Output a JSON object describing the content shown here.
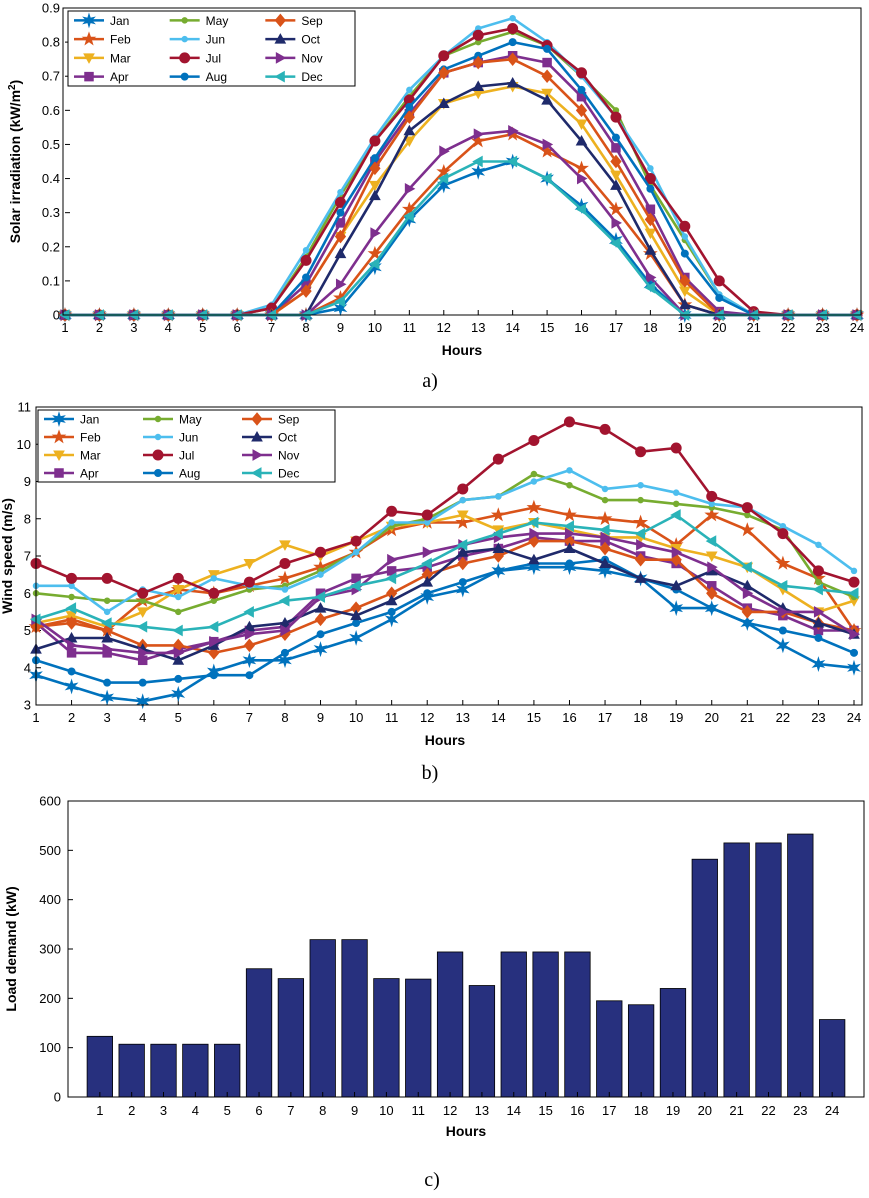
{
  "chart_data": [
    {
      "type": "line",
      "panel_label": "a)",
      "xlabel": "Hours",
      "ylabel": "Solar irradiation (kW/m",
      "ylabel_sup": "2",
      "ylabel_close": ")",
      "x": [
        1,
        2,
        3,
        4,
        5,
        6,
        7,
        8,
        9,
        10,
        11,
        12,
        13,
        14,
        15,
        16,
        17,
        18,
        19,
        20,
        21,
        22,
        23,
        24
      ],
      "xlim": [
        1,
        24
      ],
      "ylim": [
        0,
        0.9
      ],
      "yticks": [
        0,
        0.1,
        0.2,
        0.3,
        0.4,
        0.5,
        0.6,
        0.7,
        0.8,
        0.9
      ],
      "ytick_labels": [
        "0",
        "0.1",
        "0.2",
        "0.3",
        "0.4",
        "0.5",
        "0.6",
        "0.7",
        "0.8",
        "0.9"
      ],
      "legend": "top-left",
      "series": [
        {
          "name": "Jan",
          "color": "#0072BD",
          "marker": "hexagram",
          "values": [
            0,
            0,
            0,
            0,
            0,
            0,
            0,
            0,
            0.02,
            0.14,
            0.28,
            0.38,
            0.42,
            0.45,
            0.4,
            0.32,
            0.22,
            0.09,
            0,
            0,
            0,
            0,
            0,
            0
          ]
        },
        {
          "name": "Feb",
          "color": "#D95319",
          "marker": "pentagram",
          "values": [
            0,
            0,
            0,
            0,
            0,
            0,
            0,
            0,
            0.05,
            0.18,
            0.31,
            0.42,
            0.51,
            0.53,
            0.48,
            0.43,
            0.31,
            0.18,
            0.03,
            0,
            0,
            0,
            0,
            0
          ]
        },
        {
          "name": "Mar",
          "color": "#EDB120",
          "marker": "triangle-down",
          "values": [
            0,
            0,
            0,
            0,
            0,
            0,
            0,
            0.07,
            0.23,
            0.38,
            0.51,
            0.62,
            0.65,
            0.67,
            0.65,
            0.56,
            0.41,
            0.24,
            0.07,
            0,
            0,
            0,
            0,
            0
          ]
        },
        {
          "name": "Apr",
          "color": "#7E2F8E",
          "marker": "square",
          "values": [
            0,
            0,
            0,
            0,
            0,
            0,
            0,
            0.09,
            0.27,
            0.45,
            0.59,
            0.71,
            0.74,
            0.76,
            0.74,
            0.64,
            0.49,
            0.31,
            0.11,
            0.01,
            0,
            0,
            0,
            0
          ]
        },
        {
          "name": "May",
          "color": "#77AC30",
          "marker": "point",
          "values": [
            0,
            0,
            0,
            0,
            0,
            0,
            0.02,
            0.17,
            0.35,
            0.51,
            0.64,
            0.76,
            0.8,
            0.83,
            0.79,
            0.7,
            0.6,
            0.38,
            0.22,
            0.06,
            0,
            0,
            0,
            0
          ]
        },
        {
          "name": "Jun",
          "color": "#4DBEEE",
          "marker": "point",
          "values": [
            0,
            0,
            0,
            0,
            0,
            0,
            0.03,
            0.19,
            0.36,
            0.52,
            0.66,
            0.76,
            0.84,
            0.87,
            0.8,
            0.7,
            0.58,
            0.43,
            0.23,
            0.06,
            0,
            0,
            0,
            0
          ]
        },
        {
          "name": "Jul",
          "color": "#A2142F",
          "marker": "circle",
          "values": [
            0,
            0,
            0,
            0,
            0,
            0,
            0.02,
            0.16,
            0.33,
            0.51,
            0.63,
            0.76,
            0.82,
            0.84,
            0.79,
            0.71,
            0.58,
            0.4,
            0.26,
            0.1,
            0.01,
            0,
            0,
            0
          ]
        },
        {
          "name": "Aug",
          "color": "#0072BD",
          "marker": "circle-small",
          "values": [
            0,
            0,
            0,
            0,
            0,
            0,
            0,
            0.11,
            0.3,
            0.46,
            0.61,
            0.72,
            0.76,
            0.8,
            0.78,
            0.66,
            0.52,
            0.37,
            0.18,
            0.05,
            0,
            0,
            0,
            0
          ]
        },
        {
          "name": "Sep",
          "color": "#D95319",
          "marker": "diamond",
          "values": [
            0,
            0,
            0,
            0,
            0,
            0,
            0,
            0.07,
            0.23,
            0.43,
            0.58,
            0.71,
            0.74,
            0.75,
            0.7,
            0.6,
            0.45,
            0.28,
            0.1,
            0,
            0,
            0,
            0,
            0
          ]
        },
        {
          "name": "Oct",
          "color": "#1F2A6B",
          "marker": "triangle-up",
          "values": [
            0,
            0,
            0,
            0,
            0,
            0,
            0,
            0,
            0.18,
            0.35,
            0.54,
            0.62,
            0.67,
            0.68,
            0.63,
            0.51,
            0.38,
            0.19,
            0.03,
            0,
            0,
            0,
            0,
            0
          ]
        },
        {
          "name": "Nov",
          "color": "#7E2F8E",
          "marker": "triangle-right",
          "values": [
            0,
            0,
            0,
            0,
            0,
            0,
            0,
            0,
            0.09,
            0.24,
            0.37,
            0.48,
            0.53,
            0.54,
            0.5,
            0.4,
            0.27,
            0.11,
            0,
            0,
            0,
            0,
            0,
            0
          ]
        },
        {
          "name": "Dec",
          "color": "#2AB3B8",
          "marker": "triangle-left",
          "values": [
            0,
            0,
            0,
            0,
            0,
            0,
            0,
            0,
            0.04,
            0.15,
            0.29,
            0.4,
            0.45,
            0.45,
            0.4,
            0.31,
            0.21,
            0.08,
            0,
            0,
            0,
            0,
            0,
            0
          ]
        }
      ]
    },
    {
      "type": "line",
      "panel_label": "b)",
      "xlabel": "Hours",
      "ylabel": "Wind speed (m/s)",
      "x": [
        1,
        2,
        3,
        4,
        5,
        6,
        7,
        8,
        9,
        10,
        11,
        12,
        13,
        14,
        15,
        16,
        17,
        18,
        19,
        20,
        21,
        22,
        23,
        24
      ],
      "xlim": [
        1,
        24
      ],
      "ylim": [
        3,
        11
      ],
      "yticks": [
        3,
        4,
        5,
        6,
        7,
        8,
        9,
        10,
        11
      ],
      "ytick_labels": [
        "3",
        "4",
        "5",
        "6",
        "7",
        "8",
        "9",
        "10",
        "11"
      ],
      "legend": "top-left",
      "series": [
        {
          "name": "Jan",
          "color": "#0072BD",
          "marker": "hexagram",
          "values": [
            3.8,
            3.5,
            3.2,
            3.1,
            3.3,
            3.9,
            4.2,
            4.2,
            4.5,
            4.8,
            5.3,
            5.9,
            6.1,
            6.6,
            6.7,
            6.7,
            6.6,
            6.4,
            5.6,
            5.6,
            5.2,
            4.6,
            4.1,
            4.0
          ]
        },
        {
          "name": "Feb",
          "color": "#D95319",
          "marker": "pentagram",
          "values": [
            5.1,
            5.3,
            5.0,
            5.8,
            6.1,
            6.0,
            6.2,
            6.4,
            6.7,
            7.1,
            7.7,
            7.9,
            7.9,
            8.1,
            8.3,
            8.1,
            8.0,
            7.9,
            7.3,
            8.1,
            7.7,
            6.8,
            6.4,
            5.0
          ]
        },
        {
          "name": "Mar",
          "color": "#EDB120",
          "marker": "triangle-down",
          "values": [
            5.2,
            5.4,
            5.1,
            5.5,
            6.1,
            6.5,
            6.8,
            7.3,
            7.0,
            7.4,
            7.8,
            7.9,
            8.1,
            7.7,
            7.9,
            7.7,
            7.5,
            7.5,
            7.2,
            7.0,
            6.7,
            6.1,
            5.5,
            5.8
          ]
        },
        {
          "name": "Apr",
          "color": "#7E2F8E",
          "marker": "square",
          "values": [
            5.2,
            4.4,
            4.4,
            4.2,
            4.5,
            4.7,
            5.0,
            5.1,
            6.0,
            6.4,
            6.6,
            6.7,
            7.0,
            7.2,
            7.5,
            7.4,
            7.4,
            7.0,
            6.8,
            6.2,
            5.6,
            5.4,
            5.0,
            5.0
          ]
        },
        {
          "name": "May",
          "color": "#77AC30",
          "marker": "point",
          "values": [
            6.0,
            5.9,
            5.8,
            5.8,
            5.5,
            5.8,
            6.1,
            6.2,
            6.6,
            7.1,
            7.8,
            8.0,
            8.5,
            8.6,
            9.2,
            8.9,
            8.5,
            8.5,
            8.4,
            8.3,
            8.1,
            7.7,
            6.3,
            5.9
          ]
        },
        {
          "name": "Jun",
          "color": "#4DBEEE",
          "marker": "point",
          "values": [
            6.2,
            6.2,
            5.5,
            6.1,
            5.9,
            6.4,
            6.2,
            6.1,
            6.5,
            7.1,
            7.9,
            7.9,
            8.5,
            8.6,
            9.0,
            9.3,
            8.8,
            8.9,
            8.7,
            8.4,
            8.3,
            7.8,
            7.3,
            6.6
          ]
        },
        {
          "name": "Jul",
          "color": "#A2142F",
          "marker": "circle",
          "values": [
            6.8,
            6.4,
            6.4,
            6.0,
            6.4,
            6.0,
            6.3,
            6.8,
            7.1,
            7.4,
            8.2,
            8.1,
            8.8,
            9.6,
            10.1,
            10.6,
            10.4,
            9.8,
            9.9,
            8.6,
            8.3,
            7.6,
            6.6,
            6.3
          ]
        },
        {
          "name": "Aug",
          "color": "#0072BD",
          "marker": "circle-small",
          "values": [
            4.2,
            3.9,
            3.6,
            3.6,
            3.7,
            3.8,
            3.8,
            4.4,
            4.9,
            5.2,
            5.5,
            6.0,
            6.3,
            6.6,
            6.8,
            6.8,
            6.9,
            6.4,
            6.1,
            5.6,
            5.2,
            5.0,
            4.8,
            4.4
          ]
        },
        {
          "name": "Sep",
          "color": "#D95319",
          "marker": "diamond",
          "values": [
            5.1,
            5.2,
            5.0,
            4.6,
            4.6,
            4.4,
            4.6,
            4.9,
            5.3,
            5.6,
            6.0,
            6.5,
            6.8,
            7.0,
            7.4,
            7.4,
            7.2,
            6.9,
            6.9,
            6.0,
            5.5,
            5.5,
            5.2,
            5.0
          ]
        },
        {
          "name": "Oct",
          "color": "#1F2A6B",
          "marker": "triangle-up",
          "values": [
            4.5,
            4.8,
            4.8,
            4.5,
            4.2,
            4.6,
            5.1,
            5.2,
            5.6,
            5.4,
            5.8,
            6.3,
            7.1,
            7.2,
            6.9,
            7.2,
            6.8,
            6.4,
            6.2,
            6.6,
            6.2,
            5.6,
            5.2,
            4.9
          ]
        },
        {
          "name": "Nov",
          "color": "#7E2F8E",
          "marker": "triangle-right",
          "values": [
            5.3,
            4.6,
            4.5,
            4.4,
            4.4,
            4.7,
            4.9,
            5.0,
            5.9,
            6.1,
            6.9,
            7.1,
            7.3,
            7.5,
            7.6,
            7.6,
            7.5,
            7.3,
            7.1,
            6.7,
            6.0,
            5.5,
            5.5,
            4.9
          ]
        },
        {
          "name": "Dec",
          "color": "#2AB3B8",
          "marker": "triangle-left",
          "values": [
            5.3,
            5.6,
            5.2,
            5.1,
            5.0,
            5.1,
            5.5,
            5.8,
            5.9,
            6.2,
            6.4,
            6.8,
            7.3,
            7.6,
            7.9,
            7.8,
            7.7,
            7.6,
            8.1,
            7.4,
            6.7,
            6.2,
            6.1,
            6.0
          ]
        }
      ]
    },
    {
      "type": "bar",
      "panel_label": "c)",
      "xlabel": "Hours",
      "ylabel": "Load demand (kW)",
      "categories": [
        "1",
        "2",
        "3",
        "4",
        "5",
        "6",
        "7",
        "8",
        "9",
        "10",
        "11",
        "12",
        "13",
        "14",
        "15",
        "16",
        "17",
        "18",
        "19",
        "20",
        "21",
        "22",
        "23",
        "24"
      ],
      "values": [
        123,
        107,
        107,
        107,
        107,
        260,
        240,
        319,
        319,
        240,
        239,
        294,
        226,
        294,
        294,
        294,
        195,
        187,
        220,
        482,
        515,
        515,
        533,
        157
      ],
      "color": "#27307E",
      "ylim": [
        0,
        600
      ],
      "yticks": [
        0,
        100,
        200,
        300,
        400,
        500,
        600
      ],
      "ytick_labels": [
        "0",
        "100",
        "200",
        "300",
        "400",
        "500",
        "600"
      ]
    }
  ]
}
